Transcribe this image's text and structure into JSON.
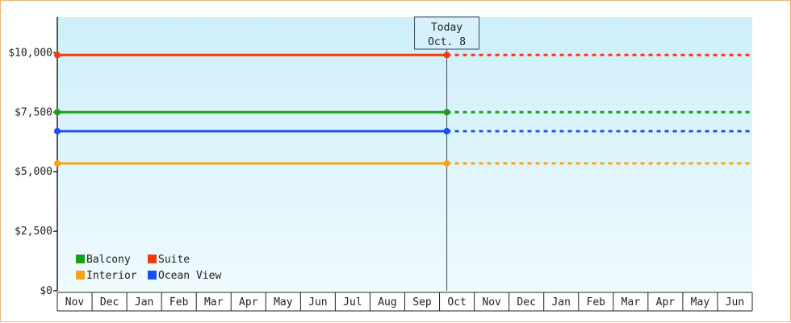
{
  "chart_data": {
    "type": "line",
    "x_categories": [
      "Nov",
      "Dec",
      "Jan",
      "Feb",
      "Mar",
      "Apr",
      "May",
      "Jun",
      "Jul",
      "Aug",
      "Sep",
      "Oct",
      "Nov",
      "Dec",
      "Jan",
      "Feb",
      "Mar",
      "Apr",
      "May",
      "Jun"
    ],
    "y_ticks": [
      "$0",
      "$2,500",
      "$5,000",
      "$7,500",
      "$10,000"
    ],
    "y_tick_values": [
      0,
      2500,
      5000,
      7500,
      10000
    ],
    "ylim": [
      0,
      11500
    ],
    "today": {
      "line1": "Today",
      "line2": "Oct. 8",
      "category_index": 11
    },
    "series": [
      {
        "name": "Suite",
        "color": "#f23a0e",
        "value": 9900
      },
      {
        "name": "Balcony",
        "color": "#17a017",
        "value": 7500
      },
      {
        "name": "Ocean View",
        "color": "#1a4ff0",
        "value": 6700
      },
      {
        "name": "Interior",
        "color": "#f5a41c",
        "value": 5350
      }
    ],
    "legend": {
      "placement": "bottom-left",
      "order": [
        "Balcony",
        "Suite",
        "Interior",
        "Ocean View"
      ]
    },
    "solid_until": "Today",
    "dashed_after": "Today"
  }
}
